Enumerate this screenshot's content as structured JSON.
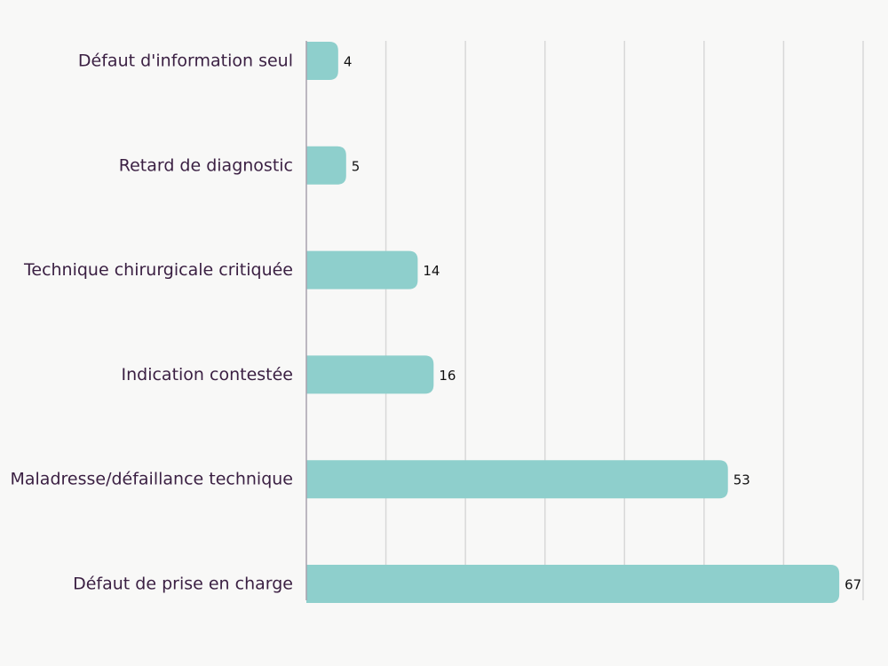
{
  "chart_data": {
    "type": "bar",
    "orientation": "horizontal",
    "categories": [
      "Défaut d'information seul",
      "Retard de diagnostic",
      "Technique chirurgicale critiquée",
      "Indication contestée",
      "Maladresse/défaillance technique",
      "Défaut de prise en charge"
    ],
    "values": [
      4,
      5,
      14,
      16,
      53,
      67
    ],
    "data_labels": [
      "4",
      "5",
      "14",
      "16",
      "53",
      "67"
    ],
    "xlim": [
      0,
      70
    ],
    "grid": "vertical",
    "bar_color": "#8ecfcc",
    "label_color": "#3a1f42",
    "axis_color": "#a7a1ad",
    "background": "#f8f8f7"
  }
}
